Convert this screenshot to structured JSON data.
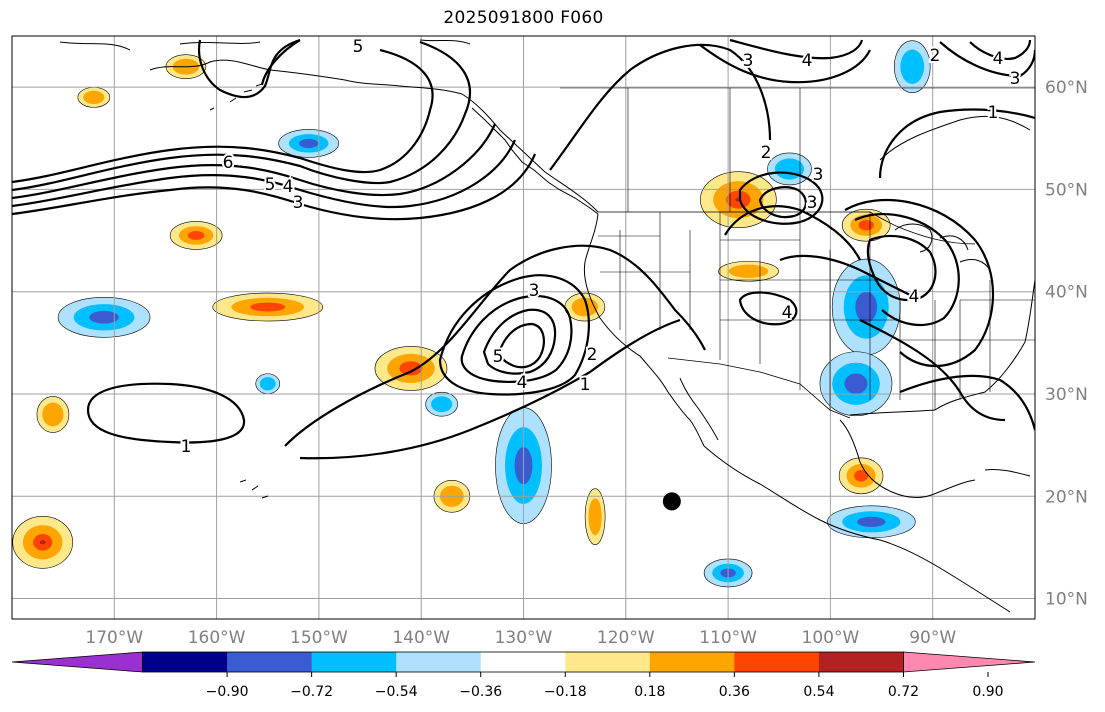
{
  "title": "2025091800 F060",
  "map": {
    "projection": "equirectangular",
    "lon_range": [
      -180,
      -80
    ],
    "lat_range": [
      8,
      65
    ],
    "gridlines": true,
    "grid_color": "#a0a0a0",
    "lon_ticks": [
      "170°W",
      "160°W",
      "150°W",
      "140°W",
      "130°W",
      "120°W",
      "110°W",
      "100°W",
      "90°W"
    ],
    "lat_ticks": [
      "60°N",
      "50°N",
      "40°N",
      "30°N",
      "20°N",
      "10°N"
    ],
    "tick_color": "#808080",
    "marker": {
      "label": "black-dot",
      "lon": -115.5,
      "lat": 19.5,
      "color": "#000000"
    }
  },
  "colorbar": {
    "ticks": [
      "−0.90",
      "−0.72",
      "−0.54",
      "−0.36",
      "−0.18",
      "0.18",
      "0.36",
      "0.54",
      "0.72",
      "0.90"
    ],
    "colors": [
      "#9b30d0",
      "#00008b",
      "#3a5cd0",
      "#00bfff",
      "#aee0ff",
      "#ffffff",
      "#ffe88a",
      "#ffa500",
      "#ff4500",
      "#b22222",
      "#ff88b0"
    ],
    "extend": "both"
  },
  "chart_data": {
    "type": "contour-map",
    "filled_field": {
      "levels": [
        -0.9,
        -0.72,
        -0.54,
        -0.36,
        -0.18,
        0.18,
        0.36,
        0.54,
        0.72,
        0.9
      ],
      "positive_areas": [
        {
          "lon": -177,
          "lat": 15.5,
          "max": 0.72
        },
        {
          "lon": -155,
          "lat": 38.5,
          "max": 0.54
        },
        {
          "lon": -162,
          "lat": 45.5,
          "max": 0.54
        },
        {
          "lon": -141,
          "lat": 32.5,
          "max": 0.54
        },
        {
          "lon": -109,
          "lat": 49,
          "max": 0.72
        },
        {
          "lon": -96.5,
          "lat": 46.5,
          "max": 0.54
        },
        {
          "lon": -97,
          "lat": 22,
          "max": 0.54
        },
        {
          "lon": -172,
          "lat": 59,
          "max": 0.36
        },
        {
          "lon": -163,
          "lat": 62,
          "max": 0.36
        },
        {
          "lon": -124,
          "lat": 38.5,
          "max": 0.36
        },
        {
          "lon": -137,
          "lat": 20,
          "max": 0.36
        },
        {
          "lon": -123,
          "lat": 18,
          "max": 0.36
        },
        {
          "lon": -176,
          "lat": 28,
          "max": 0.36
        },
        {
          "lon": -108,
          "lat": 42,
          "max": 0.36
        }
      ],
      "negative_areas": [
        {
          "lon": -171,
          "lat": 37.5,
          "min": -0.54
        },
        {
          "lon": -151,
          "lat": 54.5,
          "min": -0.54
        },
        {
          "lon": -130,
          "lat": 23,
          "min": -0.54
        },
        {
          "lon": -96.5,
          "lat": 38.5,
          "min": -0.54
        },
        {
          "lon": -97.5,
          "lat": 31,
          "min": -0.54
        },
        {
          "lon": -110,
          "lat": 12.5,
          "min": -0.54
        },
        {
          "lon": -96,
          "lat": 17.5,
          "min": -0.54
        },
        {
          "lon": -104,
          "lat": 52,
          "min": -0.36
        },
        {
          "lon": -92,
          "lat": 62,
          "min": -0.36
        },
        {
          "lon": -138,
          "lat": 29,
          "min": -0.36
        },
        {
          "lon": -155,
          "lat": 31,
          "min": -0.36
        }
      ]
    },
    "contour_labels": [
      "5",
      "6",
      "5",
      "4",
      "3",
      "3",
      "5",
      "4",
      "2",
      "1",
      "1",
      "2",
      "3",
      "3",
      "4",
      "3",
      "4",
      "2",
      "1",
      "4",
      "3",
      "4"
    ]
  }
}
